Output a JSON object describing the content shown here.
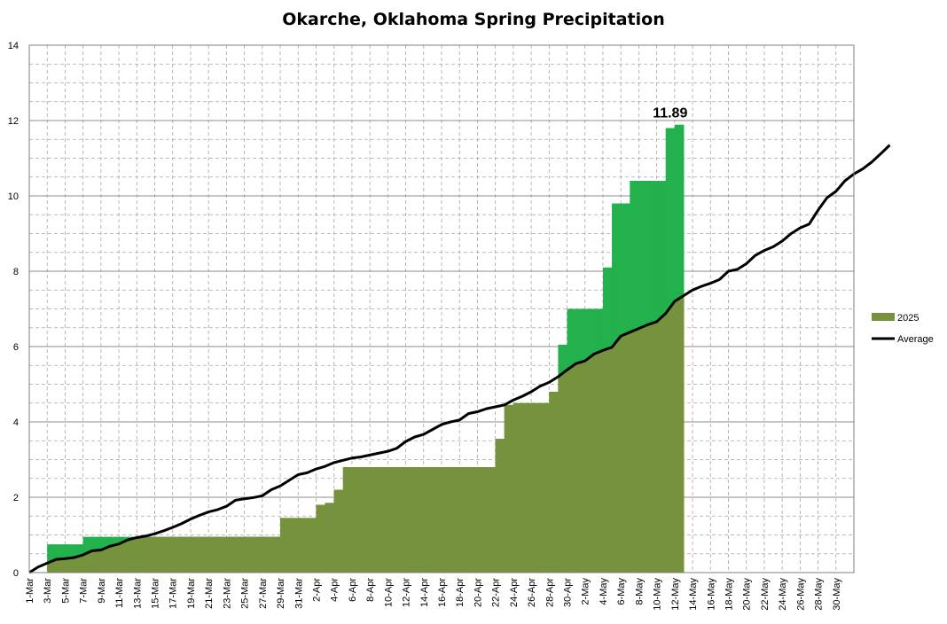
{
  "chart_data": {
    "type": "area",
    "title": "Okarche, Oklahoma Spring Precipitation",
    "ylim": [
      0,
      14
    ],
    "y_major_ticks": [
      0,
      2,
      4,
      6,
      8,
      10,
      12,
      14
    ],
    "y_minor_step": 0.5,
    "x_start": "1-Mar",
    "x_days": 92,
    "x_tick_labels": [
      "1-Mar",
      "3-Mar",
      "5-Mar",
      "7-Mar",
      "9-Mar",
      "11-Mar",
      "13-Mar",
      "15-Mar",
      "17-Mar",
      "19-Mar",
      "21-Mar",
      "23-Mar",
      "25-Mar",
      "27-Mar",
      "29-Mar",
      "31-Mar",
      "2-Apr",
      "4-Apr",
      "6-Apr",
      "8-Apr",
      "10-Apr",
      "12-Apr",
      "14-Apr",
      "16-Apr",
      "18-Apr",
      "20-Apr",
      "22-Apr",
      "24-Apr",
      "26-Apr",
      "28-Apr",
      "30-Apr",
      "2-May",
      "4-May",
      "6-May",
      "8-May",
      "10-May",
      "12-May",
      "14-May",
      "16-May",
      "18-May",
      "20-May",
      "22-May",
      "24-May",
      "26-May",
      "28-May",
      "30-May"
    ],
    "annotation": "11.89",
    "legend": {
      "placement": "right"
    },
    "colors": {
      "above_average": "#22b14c",
      "below_average": "#76923c",
      "average_line": "#000000",
      "grid": "#a6a6a6"
    },
    "series": [
      {
        "name": "2025",
        "values": [
          0.0,
          0.0,
          0.75,
          0.75,
          0.75,
          0.75,
          0.95,
          0.95,
          0.95,
          0.95,
          0.95,
          0.95,
          0.95,
          0.95,
          0.95,
          0.95,
          0.95,
          0.95,
          0.95,
          0.95,
          0.95,
          0.95,
          0.95,
          0.95,
          0.95,
          0.95,
          0.95,
          0.95,
          1.45,
          1.45,
          1.45,
          1.45,
          1.8,
          1.85,
          2.2,
          2.8,
          2.8,
          2.8,
          2.8,
          2.8,
          2.8,
          2.8,
          2.8,
          2.8,
          2.8,
          2.8,
          2.8,
          2.8,
          2.8,
          2.8,
          2.8,
          2.8,
          3.55,
          4.45,
          4.5,
          4.5,
          4.5,
          4.5,
          4.8,
          6.05,
          7.0,
          7.0,
          7.0,
          7.0,
          8.1,
          9.8,
          9.8,
          10.4,
          10.4,
          10.4,
          10.4,
          11.8,
          11.89
        ]
      },
      {
        "name": "Average",
        "values": [
          0.0,
          0.15,
          0.25,
          0.35,
          0.37,
          0.4,
          0.47,
          0.58,
          0.6,
          0.7,
          0.76,
          0.87,
          0.93,
          0.97,
          1.03,
          1.11,
          1.2,
          1.3,
          1.42,
          1.52,
          1.61,
          1.67,
          1.76,
          1.92,
          1.96,
          1.99,
          2.04,
          2.2,
          2.3,
          2.45,
          2.6,
          2.65,
          2.75,
          2.82,
          2.92,
          2.98,
          3.04,
          3.07,
          3.12,
          3.17,
          3.22,
          3.3,
          3.48,
          3.6,
          3.67,
          3.8,
          3.93,
          4.0,
          4.05,
          4.22,
          4.27,
          4.35,
          4.4,
          4.45,
          4.58,
          4.68,
          4.8,
          4.95,
          5.05,
          5.2,
          5.38,
          5.55,
          5.62,
          5.8,
          5.9,
          5.98,
          6.28,
          6.38,
          6.48,
          6.58,
          6.66,
          6.88,
          7.2,
          7.35,
          7.5,
          7.6,
          7.68,
          7.78,
          8.0,
          8.05,
          8.2,
          8.42,
          8.55,
          8.65,
          8.8,
          9.0,
          9.15,
          9.25,
          9.62,
          9.95,
          10.12,
          10.4,
          10.58,
          10.72,
          10.9,
          11.12,
          11.35
        ]
      }
    ]
  }
}
